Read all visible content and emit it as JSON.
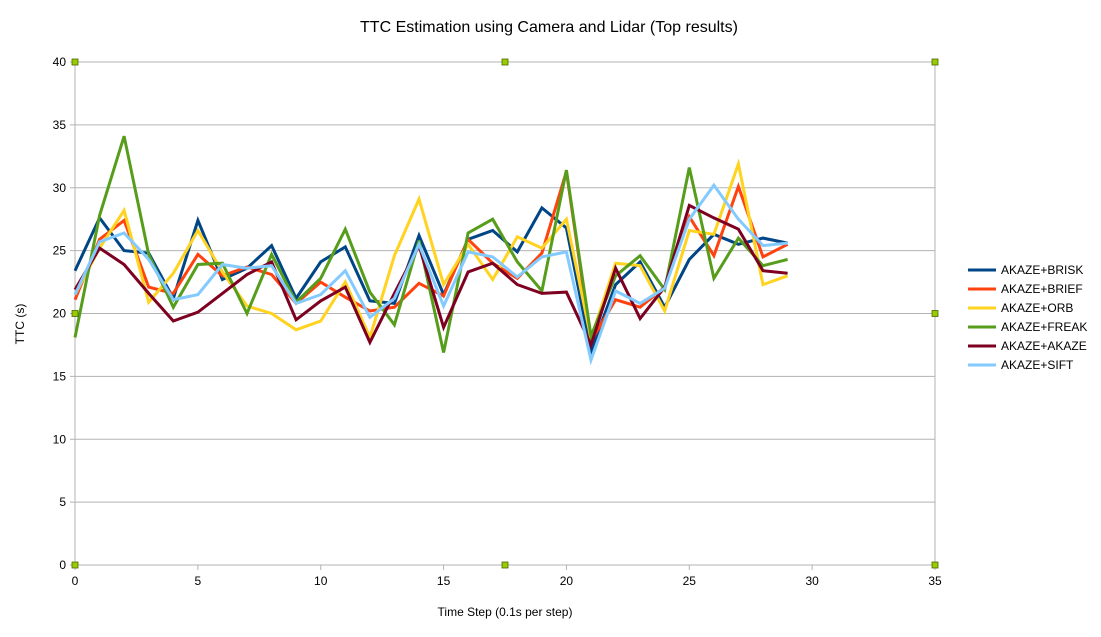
{
  "chart_data": {
    "type": "line",
    "title": "TTC Estimation using Camera and Lidar (Top results)",
    "xlabel": "Time Step (0.1s per step)",
    "ylabel": "TTC (s)",
    "xlim": [
      0,
      35
    ],
    "ylim": [
      0,
      40
    ],
    "xticks": [
      0,
      5,
      10,
      15,
      20,
      25,
      30,
      35
    ],
    "yticks": [
      0,
      5,
      10,
      15,
      20,
      25,
      30,
      35,
      40
    ],
    "grid": "horizontal",
    "legend_position": "right",
    "x": [
      0,
      1,
      2,
      3,
      4,
      5,
      6,
      7,
      8,
      9,
      10,
      11,
      12,
      13,
      14,
      15,
      16,
      17,
      18,
      19,
      20,
      21,
      22,
      23,
      24,
      25,
      26,
      27,
      28,
      29
    ],
    "series": [
      {
        "name": "AKAZE+BRISK",
        "color": "#004586",
        "values": [
          23.4,
          27.6,
          25.0,
          24.8,
          21.2,
          27.4,
          22.7,
          23.6,
          25.4,
          21.2,
          24.1,
          25.3,
          21.0,
          20.8,
          26.2,
          21.5,
          25.9,
          26.6,
          24.9,
          28.4,
          26.8,
          17.0,
          22.3,
          24.1,
          20.5,
          24.3,
          26.3,
          25.5,
          26.0,
          25.6
        ]
      },
      {
        "name": "AKAZE+BRIEF",
        "color": "#ff420e",
        "values": [
          21.1,
          25.9,
          27.4,
          22.1,
          21.6,
          24.7,
          23.0,
          23.7,
          23.1,
          20.8,
          22.5,
          21.3,
          20.2,
          20.5,
          22.4,
          21.4,
          25.9,
          24.0,
          22.8,
          24.8,
          31.3,
          17.8,
          21.1,
          20.5,
          22.1,
          27.7,
          24.6,
          30.1,
          24.5,
          25.5
        ]
      },
      {
        "name": "AKAZE+ORB",
        "color": "#ffd320",
        "values": [
          21.5,
          25.2,
          28.2,
          20.9,
          23.2,
          26.6,
          23.3,
          20.6,
          20.0,
          18.7,
          19.4,
          22.5,
          18.1,
          24.6,
          29.1,
          22.3,
          25.5,
          22.7,
          26.1,
          25.2,
          27.5,
          18.0,
          24.0,
          23.8,
          20.2,
          26.6,
          26.3,
          31.9,
          22.3,
          23.0
        ]
      },
      {
        "name": "AKAZE+FREAK",
        "color": "#579d1c",
        "values": [
          18.1,
          27.8,
          34.1,
          24.7,
          20.5,
          23.9,
          24.0,
          20.0,
          24.7,
          20.9,
          22.8,
          26.7,
          21.7,
          19.1,
          25.8,
          16.9,
          26.4,
          27.5,
          24.1,
          21.8,
          31.4,
          18.2,
          23.0,
          24.6,
          21.9,
          31.6,
          22.8,
          26.0,
          23.8,
          24.3
        ]
      },
      {
        "name": "AKAZE+AKAZE",
        "color": "#7e0021",
        "values": [
          21.9,
          25.2,
          23.9,
          21.6,
          19.4,
          20.1,
          21.6,
          23.1,
          24.1,
          19.5,
          21.0,
          22.1,
          17.7,
          21.6,
          25.4,
          18.9,
          23.3,
          24.0,
          22.3,
          21.6,
          21.7,
          17.5,
          23.6,
          19.6,
          22.1,
          28.6,
          27.6,
          26.7,
          23.4,
          23.2
        ]
      },
      {
        "name": "AKAZE+SIFT",
        "color": "#83caff",
        "values": [
          21.5,
          25.7,
          26.4,
          24.3,
          21.1,
          21.5,
          23.9,
          23.6,
          23.8,
          20.8,
          21.5,
          23.4,
          19.7,
          21.2,
          25.5,
          20.6,
          24.9,
          24.5,
          22.9,
          24.5,
          24.9,
          16.3,
          21.8,
          20.8,
          22.0,
          27.5,
          30.2,
          27.5,
          25.4,
          25.6
        ]
      }
    ]
  }
}
